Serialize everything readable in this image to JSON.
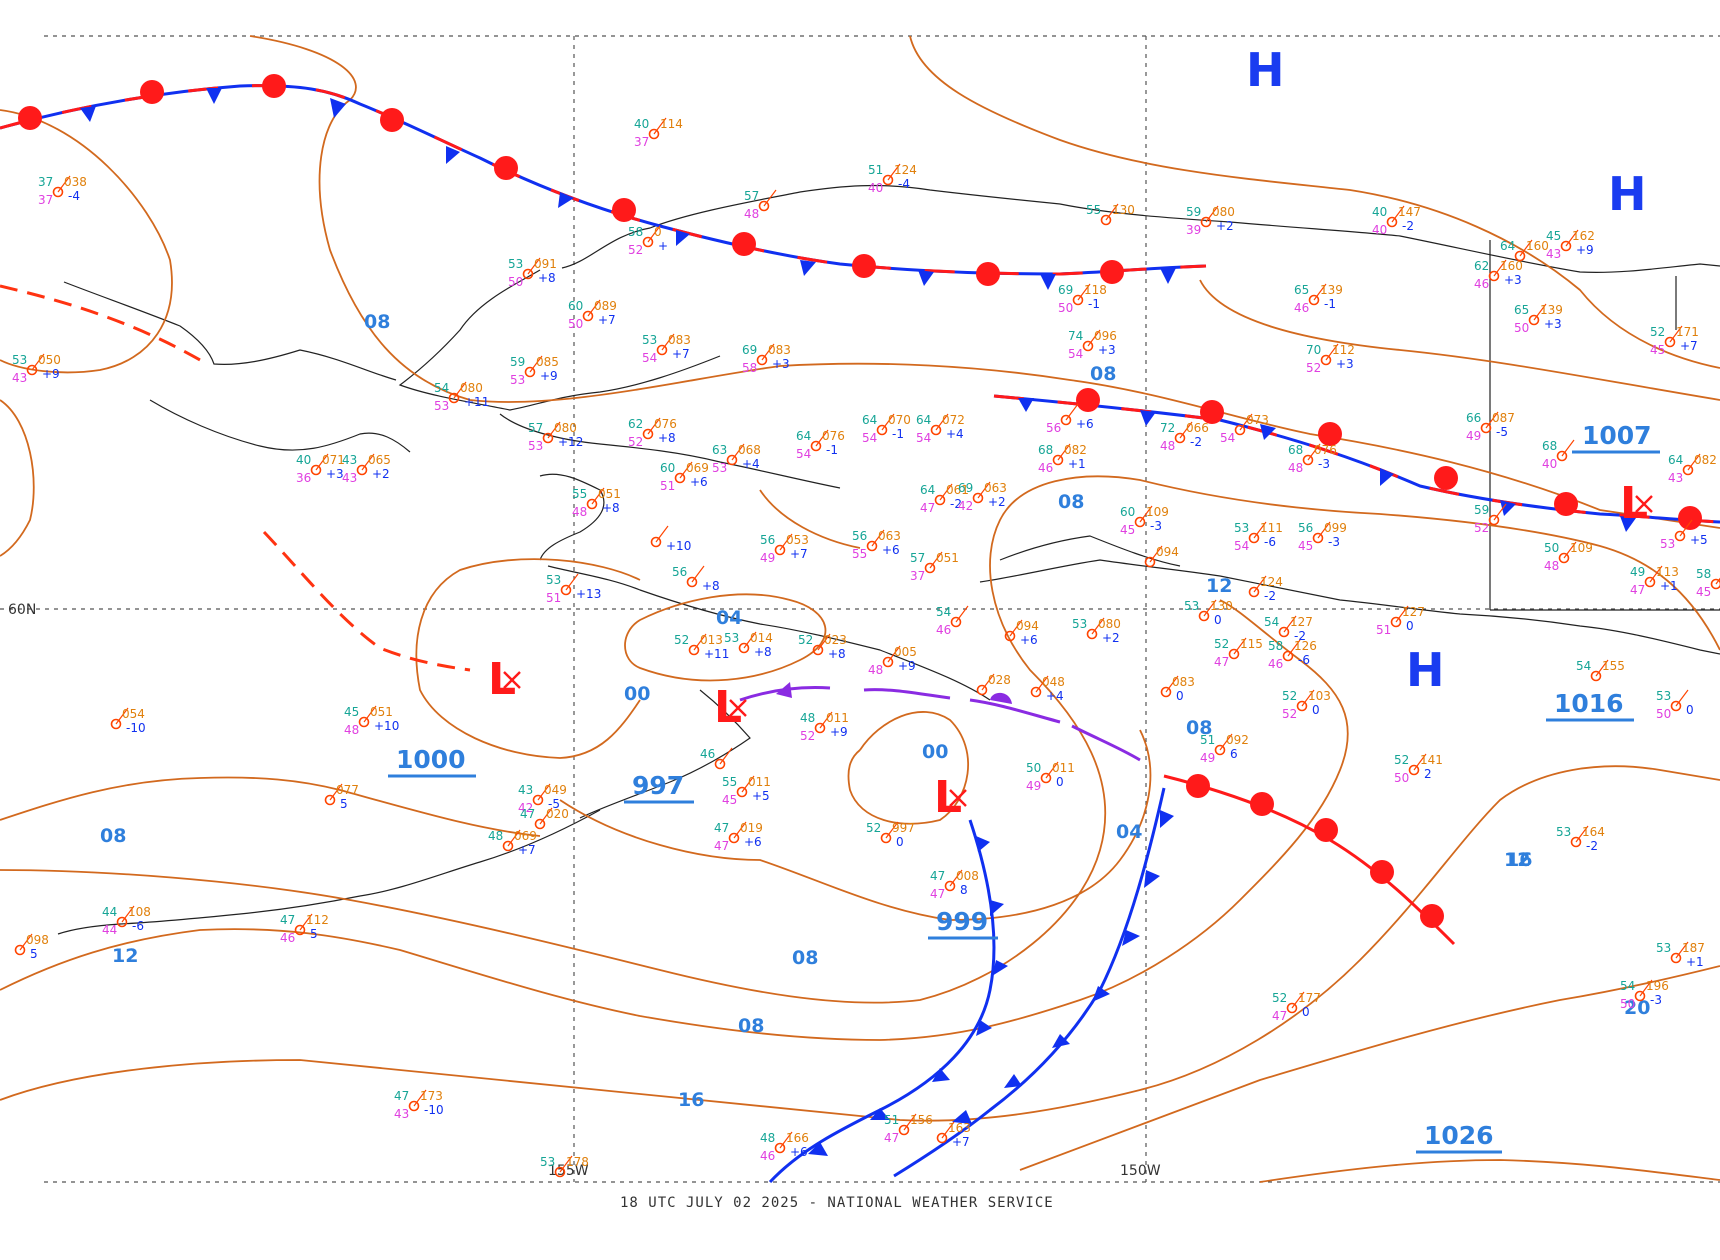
{
  "footer": "18 UTC JULY 02 2025 - NATIONAL WEATHER SERVICE",
  "coord_labels": {
    "lat_60": "60N",
    "lon_155": "155W",
    "lon_150": "150W"
  },
  "colors": {
    "front_cold": "#1030f0",
    "front_warm": "#ff1a1a",
    "isobar": "#d2691e",
    "isobar_label": "#2f7fdc",
    "high": "#1a3cf0",
    "low": "#ff1a1a",
    "trough": "#8a2be2"
  },
  "highs": [
    {
      "label": "H"
    },
    {
      "label": "H"
    },
    {
      "label": "H"
    }
  ],
  "lows": [
    {
      "label": "L"
    },
    {
      "label": "L"
    },
    {
      "label": "L"
    },
    {
      "label": "L"
    }
  ],
  "pressure_centers": [
    "1000",
    "997",
    "999",
    "1007",
    "1016",
    "1026"
  ],
  "isobar_labels": [
    "08",
    "08",
    "08",
    "04",
    "00",
    "00",
    "08",
    "12",
    "08",
    "04",
    "08",
    "12",
    "08",
    "12",
    "16",
    "16",
    "20"
  ],
  "stations": [
    {
      "t": "37",
      "p": "038",
      "d": "37",
      "ch": "-4"
    },
    {
      "t": "40",
      "p": "114",
      "d": "37",
      "ch": ""
    },
    {
      "t": "51",
      "p": "124",
      "d": "40",
      "ch": "-4"
    },
    {
      "t": "57",
      "p": "",
      "d": "48",
      "ch": ""
    },
    {
      "t": "58",
      "p": "0",
      "d": "52",
      "ch": "+"
    },
    {
      "t": "53",
      "p": "091",
      "d": "50",
      "ch": "+8"
    },
    {
      "t": "60",
      "p": "089",
      "d": "50",
      "ch": "+7"
    },
    {
      "t": "53",
      "p": "083",
      "d": "54",
      "ch": "+7"
    },
    {
      "t": "69",
      "p": "083",
      "d": "58",
      "ch": "+3"
    },
    {
      "t": "59",
      "p": "085",
      "d": "53",
      "ch": "+9"
    },
    {
      "t": "54",
      "p": "080",
      "d": "53",
      "ch": "+11"
    },
    {
      "t": "53",
      "p": "050",
      "d": "43",
      "ch": "+9"
    },
    {
      "t": "40",
      "p": "071",
      "d": "36",
      "ch": "+3"
    },
    {
      "t": "43",
      "p": "065",
      "d": "43",
      "ch": "+2"
    },
    {
      "t": "57",
      "p": "080",
      "d": "53",
      "ch": "+12"
    },
    {
      "t": "62",
      "p": "076",
      "d": "52",
      "ch": "+8"
    },
    {
      "t": "64",
      "p": "076",
      "d": "54",
      "ch": "-1"
    },
    {
      "t": "64",
      "p": "070",
      "d": "54",
      "ch": "-1"
    },
    {
      "t": "64",
      "p": "072",
      "d": "54",
      "ch": "+4"
    },
    {
      "t": "60",
      "p": "069",
      "d": "51",
      "ch": "+6"
    },
    {
      "t": "63",
      "p": "068",
      "d": "53",
      "ch": "+4"
    },
    {
      "t": "55",
      "p": "051",
      "d": "48",
      "ch": "+8"
    },
    {
      "t": "",
      "p": "",
      "d": "",
      "ch": "+10"
    },
    {
      "t": "55",
      "p": "130",
      "d": "",
      "ch": ""
    },
    {
      "t": "59",
      "p": "080",
      "d": "39",
      "ch": "+2"
    },
    {
      "t": "69",
      "p": "118",
      "d": "50",
      "ch": "-1"
    },
    {
      "t": "74",
      "p": "096",
      "d": "54",
      "ch": "+3"
    },
    {
      "t": "",
      "p": "",
      "d": "56",
      "ch": "+6"
    },
    {
      "t": "68",
      "p": "082",
      "d": "46",
      "ch": "+1"
    },
    {
      "t": "64",
      "p": "061",
      "d": "47",
      "ch": "-2"
    },
    {
      "t": "69",
      "p": "063",
      "d": "42",
      "ch": "+2"
    },
    {
      "t": "72",
      "p": "066",
      "d": "48",
      "ch": "-2"
    },
    {
      "t": "",
      "p": "073",
      "d": "54",
      "ch": ""
    },
    {
      "t": "68",
      "p": "076",
      "d": "48",
      "ch": "-3"
    },
    {
      "t": "40",
      "p": "147",
      "d": "40",
      "ch": "-2"
    },
    {
      "t": "65",
      "p": "139",
      "d": "46",
      "ch": "-1"
    },
    {
      "t": "70",
      "p": "112",
      "d": "52",
      "ch": "+3"
    },
    {
      "t": "64",
      "p": "160",
      "d": "",
      "ch": ""
    },
    {
      "t": "62",
      "p": "160",
      "d": "46",
      "ch": "+3"
    },
    {
      "t": "45",
      "p": "162",
      "d": "43",
      "ch": "+9"
    },
    {
      "t": "65",
      "p": "139",
      "d": "50",
      "ch": "+3"
    },
    {
      "t": "52",
      "p": "171",
      "d": "45",
      "ch": "+7"
    },
    {
      "t": "66",
      "p": "087",
      "d": "49",
      "ch": "-5"
    },
    {
      "t": "68",
      "p": "",
      "d": "40",
      "ch": ""
    },
    {
      "t": "64",
      "p": "082",
      "d": "43",
      "ch": ""
    },
    {
      "t": "59",
      "p": "",
      "d": "52",
      "ch": ""
    },
    {
      "t": "",
      "p": "",
      "d": "53",
      "ch": "+5"
    },
    {
      "t": "56",
      "p": "053",
      "d": "49",
      "ch": "+7"
    },
    {
      "t": "56",
      "p": "063",
      "d": "55",
      "ch": "+6"
    },
    {
      "t": "57",
      "p": "051",
      "d": "37",
      "ch": ""
    },
    {
      "t": "56",
      "p": "",
      "d": "",
      "ch": "+8"
    },
    {
      "t": "53",
      "p": "",
      "d": "51",
      "ch": "+13"
    },
    {
      "t": "60",
      "p": "109",
      "d": "45",
      "ch": "-3"
    },
    {
      "t": "53",
      "p": "111",
      "d": "54",
      "ch": "-6"
    },
    {
      "t": "56",
      "p": "099",
      "d": "45",
      "ch": "-3"
    },
    {
      "t": "",
      "p": "094",
      "d": "",
      "ch": ""
    },
    {
      "t": "50",
      "p": "109",
      "d": "48",
      "ch": ""
    },
    {
      "t": "49",
      "p": "113",
      "d": "47",
      "ch": "+1"
    },
    {
      "t": "58",
      "p": "",
      "d": "45",
      "ch": ""
    },
    {
      "t": "52",
      "p": "013",
      "d": "",
      "ch": "+11"
    },
    {
      "t": "53",
      "p": "014",
      "d": "",
      "ch": "+8"
    },
    {
      "t": "52",
      "p": "023",
      "d": "",
      "ch": "+8"
    },
    {
      "t": "",
      "p": "005",
      "d": "48",
      "ch": "+9"
    },
    {
      "t": "54",
      "p": "",
      "d": "46",
      "ch": ""
    },
    {
      "t": "",
      "p": "094",
      "d": "",
      "ch": "+6"
    },
    {
      "t": "53",
      "p": "080",
      "d": "",
      "ch": "+2"
    },
    {
      "t": "52",
      "p": "115",
      "d": "47",
      "ch": ""
    },
    {
      "t": "54",
      "p": "127",
      "d": "",
      "ch": "-2"
    },
    {
      "t": "53",
      "p": "130",
      "d": "",
      "ch": "0"
    },
    {
      "t": "58",
      "p": "126",
      "d": "46",
      "ch": "-6"
    },
    {
      "t": "",
      "p": "124",
      "d": "",
      "ch": "-2"
    },
    {
      "t": "",
      "p": "127",
      "d": "51",
      "ch": "0"
    },
    {
      "t": "54",
      "p": "155",
      "d": "",
      "ch": ""
    },
    {
      "t": "45",
      "p": "051",
      "d": "48",
      "ch": "+10"
    },
    {
      "t": "",
      "p": "054",
      "d": "",
      "ch": "-10"
    },
    {
      "t": "48",
      "p": "011",
      "d": "52",
      "ch": "+9"
    },
    {
      "t": "",
      "p": "028",
      "d": "",
      "ch": ""
    },
    {
      "t": "",
      "p": "048",
      "d": "",
      "ch": "+4"
    },
    {
      "t": "",
      "p": "083",
      "d": "",
      "ch": "0"
    },
    {
      "t": "52",
      "p": "103",
      "d": "52",
      "ch": "0"
    },
    {
      "t": "51",
      "p": "092",
      "d": "49",
      "ch": "6"
    },
    {
      "t": "52",
      "p": "141",
      "d": "50",
      "ch": "2"
    },
    {
      "t": "53",
      "p": "",
      "d": "50",
      "ch": "0"
    },
    {
      "t": "46",
      "p": "",
      "d": "",
      "ch": ""
    },
    {
      "t": "55",
      "p": "011",
      "d": "45",
      "ch": "+5"
    },
    {
      "t": "43",
      "p": "049",
      "d": "42",
      "ch": "-5"
    },
    {
      "t": "47",
      "p": "020",
      "d": "",
      "ch": ""
    },
    {
      "t": "48",
      "p": "069",
      "d": "",
      "ch": "+7"
    },
    {
      "t": "",
      "p": "077",
      "d": "",
      "ch": "5"
    },
    {
      "t": "47",
      "p": "019",
      "d": "47",
      "ch": "+6"
    },
    {
      "t": "52",
      "p": "997",
      "d": "",
      "ch": "0"
    },
    {
      "t": "50",
      "p": "011",
      "d": "49",
      "ch": "0"
    },
    {
      "t": "47",
      "p": "008",
      "d": "47",
      "ch": "8"
    },
    {
      "t": "44",
      "p": "108",
      "d": "44",
      "ch": "-6"
    },
    {
      "t": "47",
      "p": "112",
      "d": "46",
      "ch": "5"
    },
    {
      "t": "",
      "p": "098",
      "d": "",
      "ch": "5"
    },
    {
      "t": "53",
      "p": "164",
      "d": "",
      "ch": "-2"
    },
    {
      "t": "53",
      "p": "187",
      "d": "",
      "ch": "+1"
    },
    {
      "t": "54",
      "p": "196",
      "d": "50",
      "ch": "-3"
    },
    {
      "t": "52",
      "p": "177",
      "d": "47",
      "ch": "0"
    },
    {
      "t": "47",
      "p": "173",
      "d": "43",
      "ch": "-10"
    },
    {
      "t": "48",
      "p": "166",
      "d": "46",
      "ch": "+6"
    },
    {
      "t": "51",
      "p": "156",
      "d": "47",
      "ch": ""
    },
    {
      "t": "",
      "p": "163",
      "d": "",
      "ch": "+7"
    },
    {
      "t": "53",
      "p": "178",
      "d": "",
      "ch": ""
    }
  ]
}
